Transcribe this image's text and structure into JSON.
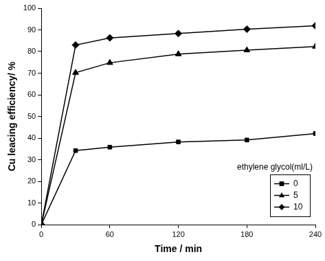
{
  "chart_data": {
    "type": "line",
    "x_label": "Time / min",
    "y_label": "Cu leacing efficiency/ %",
    "legend_title": "ethylene glycol(ml/L)",
    "x": [
      0,
      30,
      60,
      120,
      180,
      240
    ],
    "series": [
      {
        "name": "0",
        "color": "#000000",
        "marker": "square",
        "values": [
          0,
          34.2,
          35.8,
          38.2,
          39.1,
          42.1
        ]
      },
      {
        "name": "5",
        "color": "#000000",
        "marker": "triangle",
        "values": [
          0,
          70.2,
          74.8,
          78.8,
          80.6,
          82.3
        ]
      },
      {
        "name": "10",
        "color": "#000000",
        "marker": "diamond",
        "values": [
          0,
          83.0,
          86.3,
          88.3,
          90.3,
          91.9
        ]
      }
    ],
    "xlim": [
      0,
      240
    ],
    "xticks": [
      0,
      60,
      120,
      180,
      240
    ],
    "ylim": [
      0,
      100
    ],
    "yticks": [
      0,
      10,
      20,
      30,
      40,
      50,
      60,
      70,
      80,
      90,
      100
    ],
    "grid": false,
    "legend": "lower right"
  }
}
